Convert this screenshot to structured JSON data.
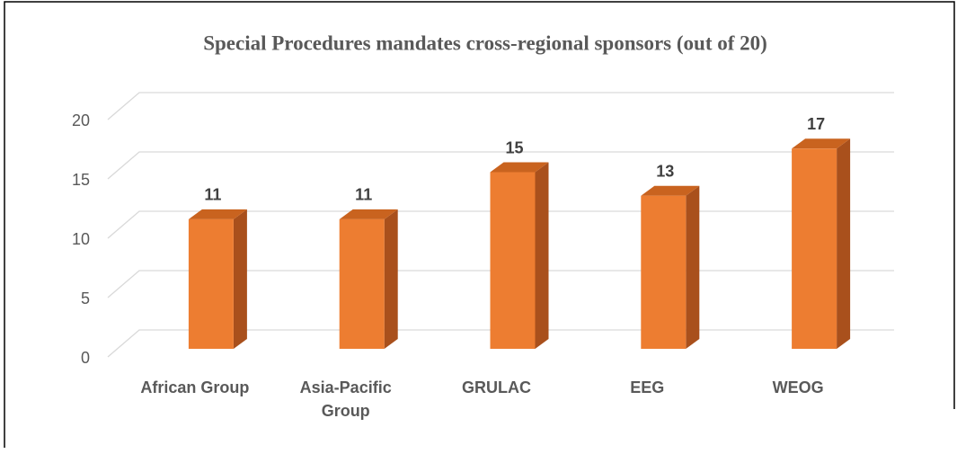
{
  "chart_data": {
    "type": "bar3d",
    "title": "Special Procedures mandates cross-regional sponsors (out of 20)",
    "categories": [
      "African Group",
      "Asia-Pacific Group",
      "GRULAC",
      "EEG",
      "WEOG"
    ],
    "values": [
      11,
      11,
      15,
      13,
      17
    ],
    "color": "#ED7D31",
    "ylim": [
      0,
      20
    ],
    "yticks": [
      0,
      5,
      10,
      15,
      20
    ],
    "grid": true
  }
}
